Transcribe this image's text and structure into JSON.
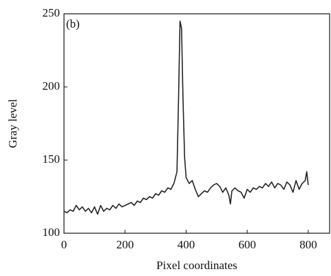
{
  "chart_data": {
    "type": "line",
    "annotation": "(b)",
    "xlabel": "Pixel coordinates",
    "ylabel": "Gray level",
    "x": [
      0,
      10,
      20,
      30,
      40,
      50,
      60,
      70,
      80,
      90,
      100,
      110,
      120,
      130,
      140,
      150,
      160,
      170,
      180,
      190,
      200,
      210,
      220,
      230,
      240,
      250,
      260,
      270,
      280,
      290,
      300,
      310,
      320,
      330,
      340,
      350,
      360,
      365,
      370,
      375,
      380,
      385,
      390,
      395,
      400,
      410,
      420,
      430,
      440,
      450,
      460,
      470,
      480,
      490,
      500,
      510,
      520,
      530,
      540,
      545,
      550,
      560,
      570,
      580,
      590,
      600,
      610,
      620,
      630,
      640,
      650,
      660,
      670,
      680,
      690,
      700,
      710,
      720,
      730,
      740,
      750,
      760,
      770,
      780,
      790,
      795,
      800
    ],
    "series": [
      {
        "color": "#222222",
        "values": [
          115,
          114,
          116,
          115,
          119,
          116,
          118,
          115,
          117,
          114,
          118,
          113,
          119,
          115,
          117,
          116,
          119,
          117,
          120,
          118,
          119,
          120,
          121,
          119,
          122,
          121,
          124,
          123,
          125,
          124,
          127,
          126,
          129,
          128,
          131,
          130,
          134,
          138,
          142,
          190,
          245,
          240,
          190,
          152,
          138,
          134,
          136,
          130,
          125,
          127,
          129,
          128,
          131,
          133,
          134,
          132,
          128,
          131,
          126,
          120,
          129,
          131,
          129,
          128,
          124,
          130,
          128,
          131,
          130,
          132,
          131,
          134,
          132,
          135,
          131,
          134,
          133,
          130,
          135,
          133,
          128,
          136,
          130,
          134,
          136,
          142,
          133
        ]
      }
    ],
    "xlim": [
      0,
      870
    ],
    "ylim": [
      100,
      250
    ],
    "xticks": [
      0,
      200,
      400,
      600,
      800
    ],
    "yticks": [
      100,
      150,
      200,
      250
    ]
  }
}
